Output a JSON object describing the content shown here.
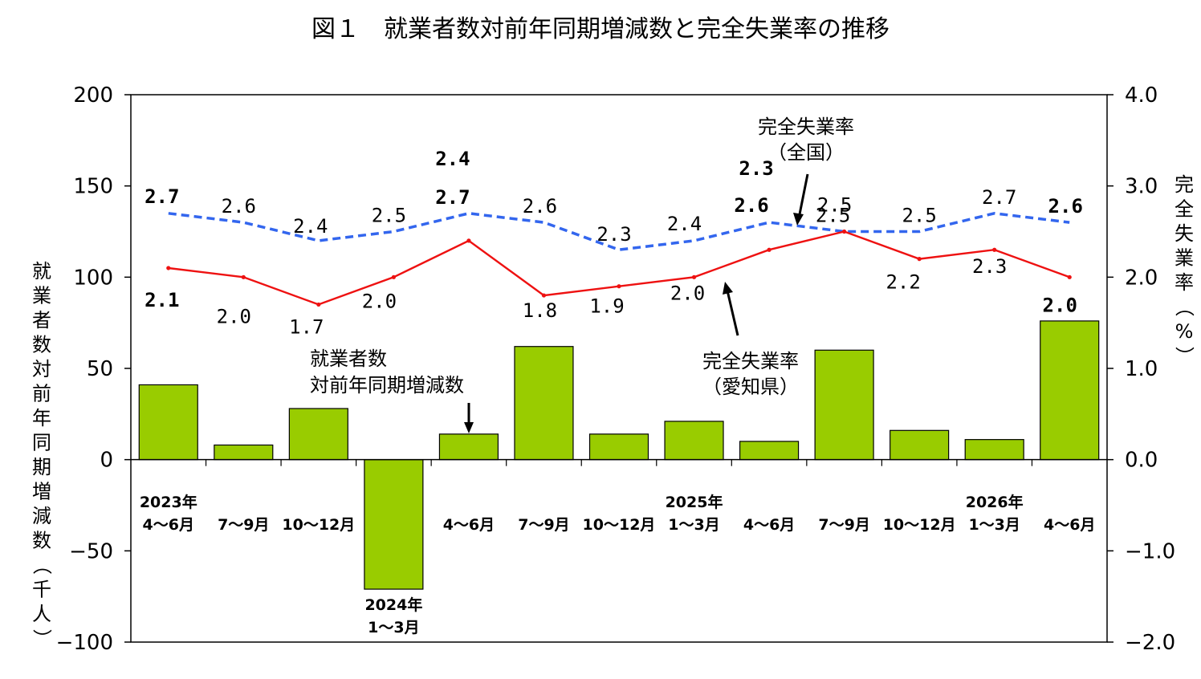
{
  "chart_data": {
    "type": "bar",
    "title": "図１　就業者数対前年同期増減数と完全失業率の推移",
    "categories": [
      [
        "2023年",
        "4〜6月"
      ],
      [
        "",
        "7〜9月"
      ],
      [
        "",
        "10〜12月"
      ],
      [
        "2024年",
        "1〜3月"
      ],
      [
        "",
        "4〜6月"
      ],
      [
        "",
        "7〜9月"
      ],
      [
        "",
        "10〜12月"
      ],
      [
        "2025年",
        "1〜3月"
      ],
      [
        "",
        "4〜6月"
      ],
      [
        "",
        "7〜9月"
      ],
      [
        "",
        "10〜12月"
      ],
      [
        "2026年",
        "1〜3月"
      ],
      [
        "",
        "4〜6月"
      ]
    ],
    "ylabel_left": "就業者数対前年同期増減数（千人）",
    "ylabel_right": "完全失業率（%）",
    "ylim_left": [
      -100,
      200
    ],
    "ylim_right": [
      -2.0,
      4.0
    ],
    "yticks_left": [
      "200",
      "150",
      "100",
      "50",
      "0",
      "−50",
      "−100"
    ],
    "yticks_right": [
      "4.0",
      "3.0",
      "2.0",
      "1.0",
      "0.0",
      "−1.0",
      "−2.0"
    ],
    "series": [
      {
        "name": "就業者数対前年同期増減数",
        "axis": "left",
        "type": "bar",
        "color": "#99cc00",
        "values": [
          41,
          8,
          28,
          -71,
          14,
          62,
          14,
          21,
          10,
          60,
          16,
          11,
          76
        ]
      },
      {
        "name": "完全失業率（全国）",
        "axis": "right",
        "type": "line",
        "style": "dashed",
        "color": "#3366ee",
        "values": [
          2.7,
          2.6,
          2.4,
          2.5,
          2.7,
          2.6,
          2.3,
          2.4,
          2.6,
          2.5,
          2.5,
          2.7,
          2.6
        ],
        "labels": [
          "2.7",
          "2.6",
          "2.4",
          "2.5",
          "2.7",
          "2.6",
          "2.3",
          "2.4",
          "2.6",
          "2.5",
          "2.5",
          "2.7",
          "2.6"
        ],
        "bold": [
          true,
          false,
          false,
          false,
          true,
          false,
          false,
          false,
          true,
          false,
          false,
          false,
          true
        ]
      },
      {
        "name": "完全失業率（愛知県）",
        "axis": "right",
        "type": "line",
        "style": "solid",
        "color": "#ee1111",
        "values": [
          2.1,
          2.0,
          1.7,
          2.0,
          2.4,
          1.8,
          1.9,
          2.0,
          2.3,
          2.5,
          2.2,
          2.3,
          2.0
        ],
        "labels": [
          "2.1",
          "2.0",
          "1.7",
          "2.0",
          "2.4",
          "1.8",
          "1.9",
          "2.0",
          "2.3",
          "2.5",
          "2.2",
          "2.3",
          "2.0"
        ],
        "bold": [
          true,
          false,
          false,
          false,
          true,
          false,
          false,
          false,
          true,
          false,
          false,
          false,
          true
        ]
      }
    ],
    "annotations": {
      "national": [
        "完全失業率",
        "（全国）"
      ],
      "aichi": [
        "完全失業率",
        "（愛知県）"
      ],
      "employment": [
        "就業者数",
        "対前年同期増減数"
      ]
    },
    "grid": false
  }
}
